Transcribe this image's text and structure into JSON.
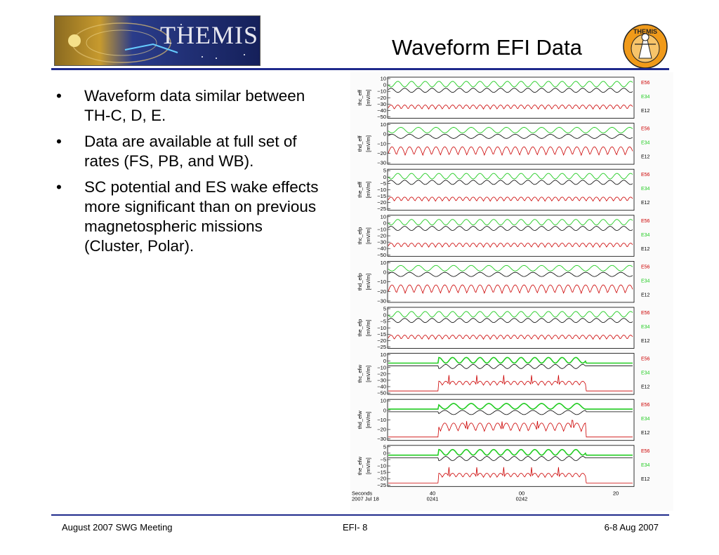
{
  "header": {
    "logo_text": "THEMIS",
    "title": "Waveform EFI Data",
    "seal_text": "THEMIS"
  },
  "bullets": [
    "Waveform data similar between TH-C, D, E.",
    "Data are available at full set of rates (FS, PB, and WB).",
    "SC potential and ES wake effects more significant than on previous magnetospheric missions (Cluster, Polar)."
  ],
  "bullet_marker": "•",
  "chart_data": {
    "type": "line",
    "legend": [
      "E56",
      "E34",
      "E12"
    ],
    "colors": {
      "E56": "#cc0000",
      "E34": "#22cc22",
      "E12": "#000000"
    },
    "panels": [
      {
        "ylabel": "thc_eff",
        "unit": "[mV/m]",
        "ticks": [
          "10",
          "0",
          "−10",
          "−20",
          "−30",
          "−40",
          "−50"
        ],
        "ylim": [
          -50,
          10
        ]
      },
      {
        "ylabel": "thd_eff",
        "unit": "[mV/m]",
        "ticks": [
          "10",
          "0",
          "−10",
          "−20",
          "−30"
        ],
        "ylim": [
          -30,
          10
        ]
      },
      {
        "ylabel": "the_eff",
        "unit": "[mV/m]",
        "ticks": [
          "5",
          "0",
          "−5",
          "−10",
          "−15",
          "−20",
          "−25"
        ],
        "ylim": [
          -25,
          5
        ]
      },
      {
        "ylabel": "thc_efp",
        "unit": "[mV/m]",
        "ticks": [
          "10",
          "0",
          "−10",
          "−20",
          "−30",
          "−40",
          "−50"
        ],
        "ylim": [
          -50,
          10
        ]
      },
      {
        "ylabel": "thd_efp",
        "unit": "[mV/m]",
        "ticks": [
          "10",
          "0",
          "−10",
          "−20",
          "−30"
        ],
        "ylim": [
          -30,
          10
        ]
      },
      {
        "ylabel": "the_efp",
        "unit": "[mV/m]",
        "ticks": [
          "5",
          "0",
          "−5",
          "−10",
          "−15",
          "−20",
          "−25"
        ],
        "ylim": [
          -25,
          5
        ]
      },
      {
        "ylabel": "thc_efw",
        "unit": "[mV/m]",
        "ticks": [
          "10",
          "0",
          "−10",
          "−20",
          "−30",
          "−40",
          "−50"
        ],
        "ylim": [
          -50,
          10
        ]
      },
      {
        "ylabel": "thd_efw",
        "unit": "[mV/m]",
        "ticks": [
          "10",
          "0",
          "−10",
          "−20",
          "−30"
        ],
        "ylim": [
          -30,
          10
        ]
      },
      {
        "ylabel": "the_efw",
        "unit": "[mV/m]",
        "ticks": [
          "5",
          "0",
          "−5",
          "−10",
          "−15",
          "−20",
          "−25"
        ],
        "ylim": [
          -25,
          5
        ]
      }
    ],
    "x_axis": {
      "row1_label": "Seconds",
      "row2_label": "2007 Jul 18",
      "ticks": [
        {
          "top": "40",
          "bottom": "0241"
        },
        {
          "top": "00",
          "bottom": "0242"
        },
        {
          "top": "20",
          "bottom": ""
        }
      ]
    }
  },
  "footer": {
    "left": "August 2007 SWG Meeting",
    "mid_prefix": "EFI- ",
    "page": "8",
    "right": "6-8 Aug 2007"
  }
}
